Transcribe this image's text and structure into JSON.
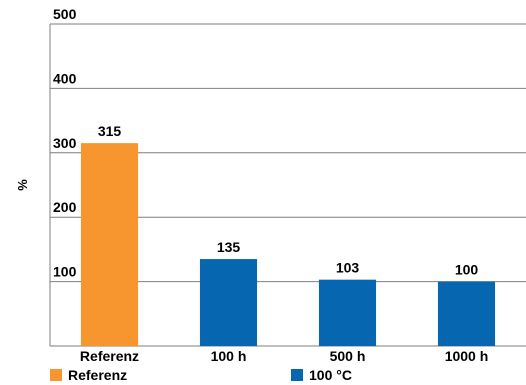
{
  "chart_data": {
    "type": "bar",
    "title": "",
    "xlabel": "",
    "ylabel": "%",
    "ylim": [
      0,
      500
    ],
    "yticks": [
      100,
      200,
      300,
      400,
      500
    ],
    "grid": true,
    "legend_position": "bottom",
    "categories": [
      "Referenz",
      "100 h",
      "500 h",
      "1000 h"
    ],
    "values": [
      315,
      135,
      103,
      100
    ],
    "bar_series": [
      "Referenz",
      "100 °C",
      "100 °C",
      "100 °C"
    ],
    "series": [
      {
        "name": "Referenz",
        "color": "#f7952e",
        "values": [
          315,
          null,
          null,
          null
        ]
      },
      {
        "name": "100 °C",
        "color": "#0766b0",
        "values": [
          null,
          135,
          103,
          100
        ]
      }
    ]
  }
}
